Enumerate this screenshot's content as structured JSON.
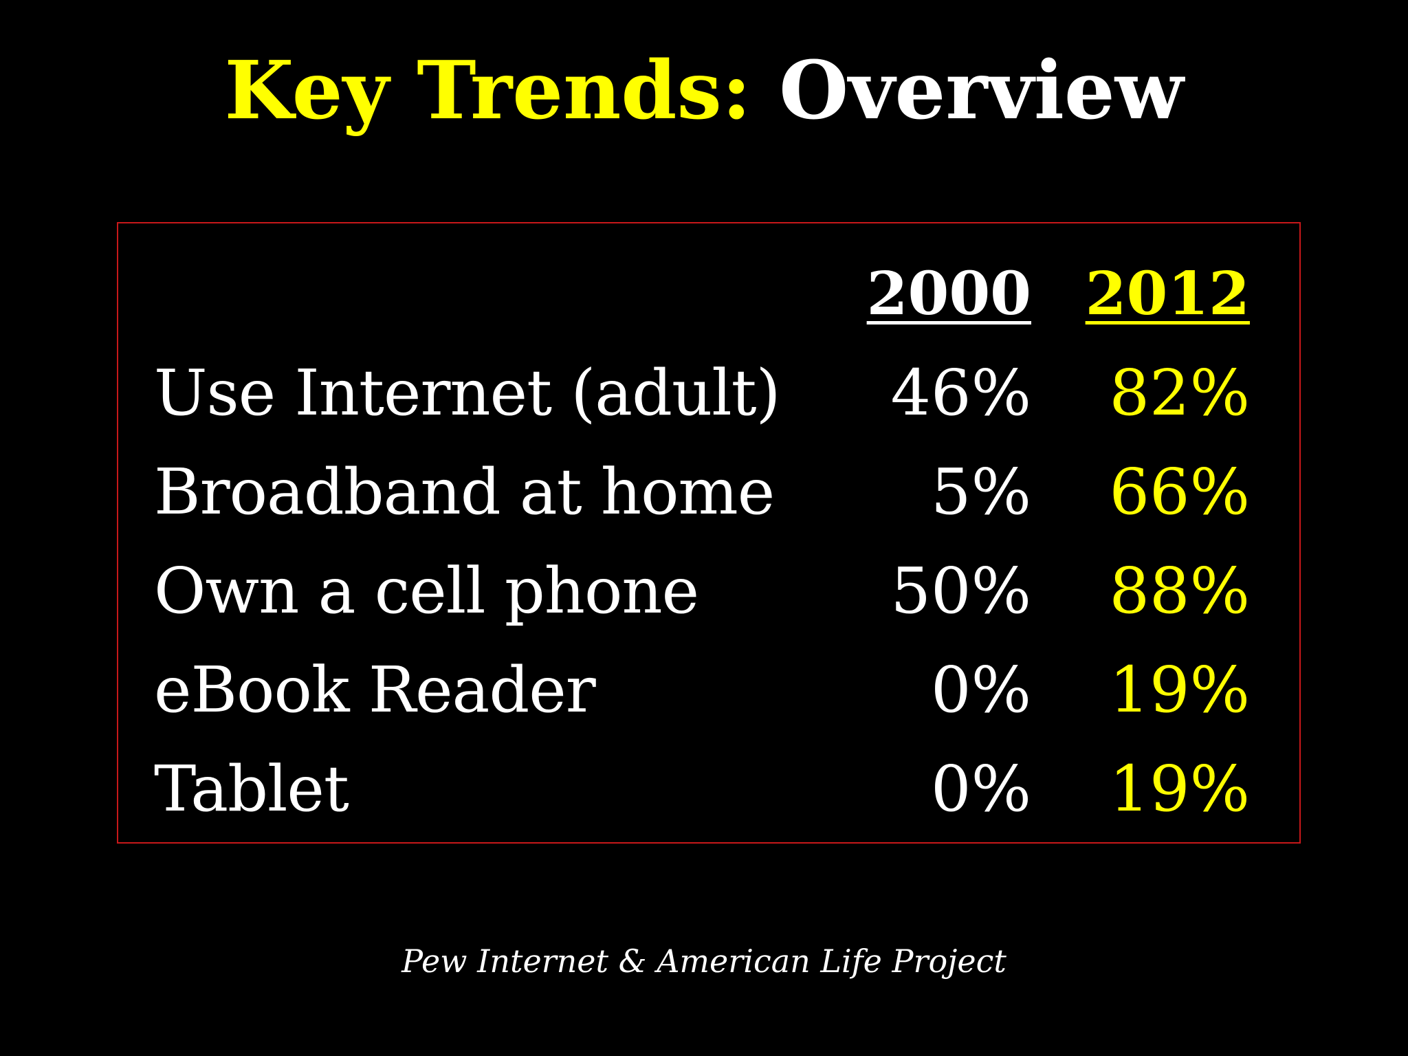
{
  "title": {
    "part1": "Key Trends:",
    "part2": "Overview"
  },
  "table": {
    "headers": [
      "2000",
      "2012"
    ],
    "rows": [
      {
        "label": "Use Internet (adult)",
        "v2000": "46%",
        "v2012": "82%"
      },
      {
        "label": "Broadband at home",
        "v2000": "5%",
        "v2012": "66%"
      },
      {
        "label": "Own a cell phone",
        "v2000": "50%",
        "v2012": "88%"
      },
      {
        "label": "eBook Reader",
        "v2000": "0%",
        "v2012": "19%"
      },
      {
        "label": "Tablet",
        "v2000": "0%",
        "v2012": "19%"
      }
    ]
  },
  "source": "Pew Internet & American Life Project",
  "colors": {
    "background": "#000000",
    "accent": "#ffff00",
    "text": "#ffffff",
    "border": "#c8181a"
  }
}
